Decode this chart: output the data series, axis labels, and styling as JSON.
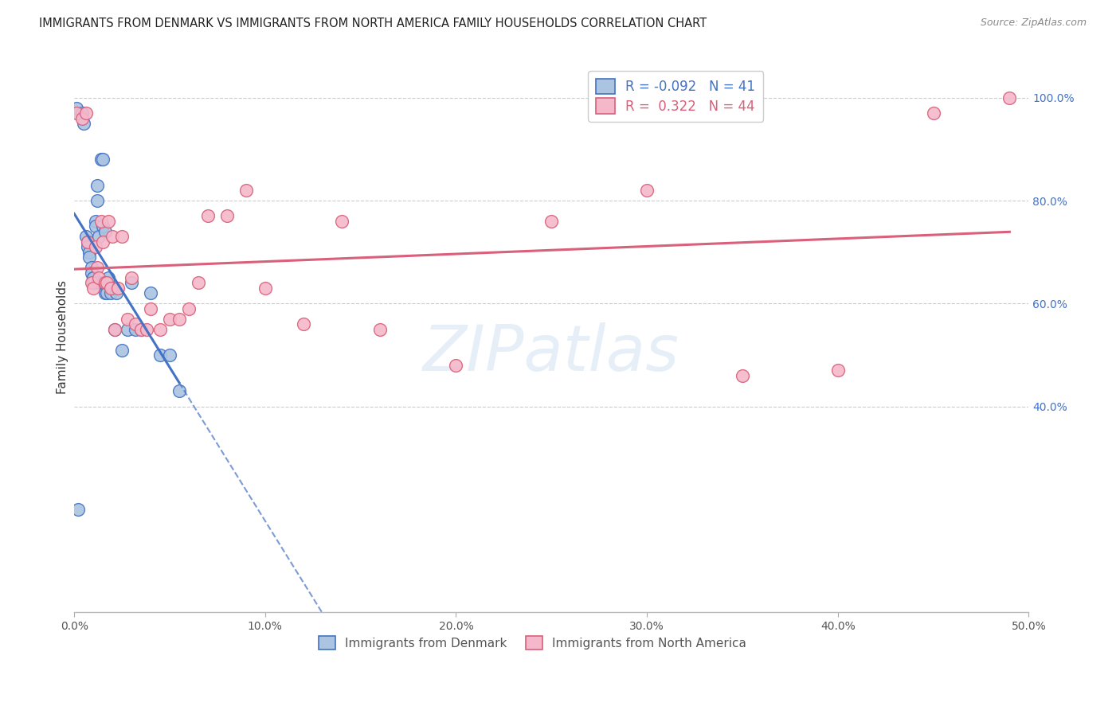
{
  "title": "IMMIGRANTS FROM DENMARK VS IMMIGRANTS FROM NORTH AMERICA FAMILY HOUSEHOLDS CORRELATION CHART",
  "source": "Source: ZipAtlas.com",
  "ylabel": "Family Households",
  "x_min": 0.0,
  "x_max": 0.5,
  "y_min": 0.0,
  "y_max": 1.07,
  "x_ticks": [
    0.0,
    0.1,
    0.2,
    0.3,
    0.4,
    0.5
  ],
  "x_tick_labels": [
    "0.0%",
    "10.0%",
    "20.0%",
    "30.0%",
    "40.0%",
    "50.0%"
  ],
  "y_ticks": [
    0.4,
    0.6,
    0.8,
    1.0
  ],
  "y_tick_labels": [
    "40.0%",
    "60.0%",
    "80.0%",
    "100.0%"
  ],
  "denmark_R": -0.092,
  "denmark_N": 41,
  "northamerica_R": 0.322,
  "northamerica_N": 44,
  "denmark_color": "#aac4e2",
  "denmark_edge_color": "#4472c4",
  "northamerica_color": "#f5b8cb",
  "northamerica_edge_color": "#d9607a",
  "watermark_text": "ZIPatlas",
  "legend_label_denmark": "Immigrants from Denmark",
  "legend_label_northamerica": "Immigrants from North America",
  "denmark_x": [
    0.001,
    0.004,
    0.005,
    0.006,
    0.007,
    0.007,
    0.008,
    0.008,
    0.009,
    0.009,
    0.01,
    0.01,
    0.01,
    0.011,
    0.011,
    0.012,
    0.012,
    0.013,
    0.013,
    0.014,
    0.015,
    0.015,
    0.015,
    0.016,
    0.016,
    0.017,
    0.018,
    0.019,
    0.02,
    0.021,
    0.022,
    0.025,
    0.028,
    0.03,
    0.032,
    0.035,
    0.04,
    0.045,
    0.05,
    0.055,
    0.002
  ],
  "denmark_y": [
    0.98,
    0.97,
    0.95,
    0.73,
    0.72,
    0.71,
    0.7,
    0.69,
    0.67,
    0.66,
    0.65,
    0.65,
    0.64,
    0.76,
    0.75,
    0.83,
    0.8,
    0.73,
    0.64,
    0.88,
    0.88,
    0.75,
    0.64,
    0.74,
    0.62,
    0.62,
    0.65,
    0.62,
    0.63,
    0.55,
    0.62,
    0.51,
    0.55,
    0.64,
    0.55,
    0.55,
    0.62,
    0.5,
    0.5,
    0.43,
    0.2
  ],
  "northamerica_x": [
    0.001,
    0.004,
    0.006,
    0.007,
    0.009,
    0.01,
    0.011,
    0.012,
    0.013,
    0.014,
    0.015,
    0.016,
    0.017,
    0.018,
    0.019,
    0.02,
    0.021,
    0.023,
    0.025,
    0.028,
    0.03,
    0.032,
    0.035,
    0.038,
    0.04,
    0.045,
    0.05,
    0.055,
    0.06,
    0.065,
    0.07,
    0.08,
    0.09,
    0.1,
    0.12,
    0.14,
    0.16,
    0.2,
    0.25,
    0.3,
    0.35,
    0.4,
    0.45,
    0.49
  ],
  "northamerica_y": [
    0.97,
    0.96,
    0.97,
    0.72,
    0.64,
    0.63,
    0.71,
    0.67,
    0.65,
    0.76,
    0.72,
    0.64,
    0.64,
    0.76,
    0.63,
    0.73,
    0.55,
    0.63,
    0.73,
    0.57,
    0.65,
    0.56,
    0.55,
    0.55,
    0.59,
    0.55,
    0.57,
    0.57,
    0.59,
    0.64,
    0.77,
    0.77,
    0.82,
    0.63,
    0.56,
    0.76,
    0.55,
    0.48,
    0.76,
    0.82,
    0.46,
    0.47,
    0.97,
    1.0
  ]
}
